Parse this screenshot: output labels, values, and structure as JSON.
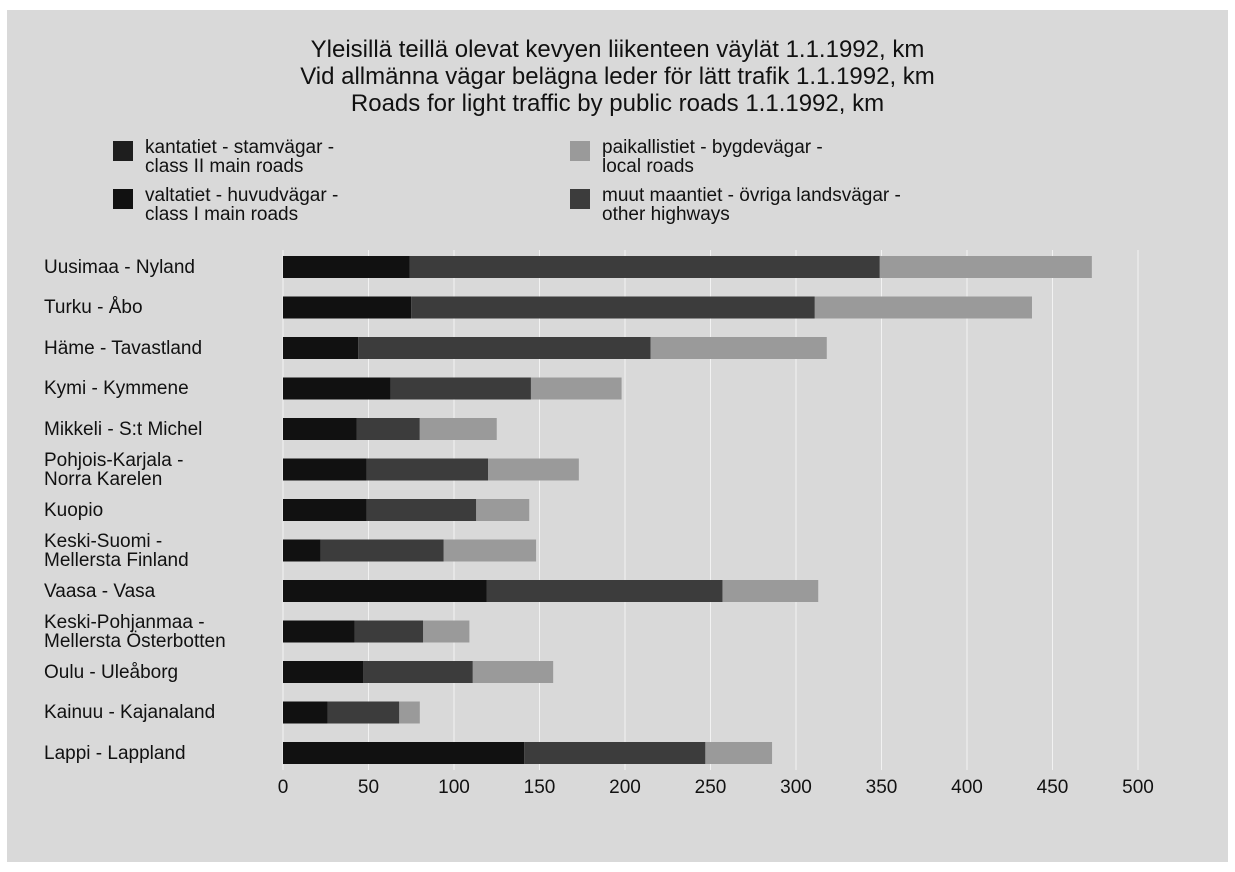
{
  "chart_data": {
    "type": "stacked-barh",
    "title": "Yleisillä teillä olevat kevyen liikenteen väylät 1.1.1992, km\nVid allmänna vägar belägna leder för lätt trafik 1.1.1992, km\nRoads for  light traffic by public roads 1.1.1992, km",
    "categories": [
      "Uusimaa - Nyland",
      "Turku - Åbo",
      "Häme - Tavastland",
      "Kymi - Kymmene",
      "Mikkeli - S:t Michel",
      "Pohjois-Karjala -\nNorra Karelen",
      "Kuopio",
      "Keski-Suomi -\nMellersta Finland",
      "Vaasa - Vasa",
      "Keski-Pohjanmaa -\nMellersta Österbotten",
      "Oulu - Uleåborg",
      "Kainuu - Kajanaland",
      "Lappi - Lappland"
    ],
    "series": [
      {
        "name": "kantatiet - stamvägar -\nclass II main roads",
        "color": "#1e1e1e",
        "values": [
          null,
          null,
          null,
          null,
          null,
          null,
          null,
          null,
          null,
          null,
          null,
          null,
          null
        ]
      },
      {
        "name": "paikallistiet - bygdevägar -\nlocal roads",
        "color": "#9a9a9a",
        "values": [
          124,
          127,
          103,
          53,
          45,
          53,
          31,
          54,
          56,
          27,
          47,
          12,
          39
        ]
      },
      {
        "name": "valtatiet - huvudvägar -\nclass I main roads",
        "color": "#111111",
        "values": [
          74,
          75,
          44,
          63,
          43,
          49,
          49,
          22,
          119,
          42,
          47,
          26,
          141
        ]
      },
      {
        "name": "muut maantiet - övriga landsvägar -\nother highways",
        "color": "#3c3c3c",
        "values": [
          275,
          236,
          171,
          82,
          37,
          71,
          64,
          72,
          138,
          40,
          64,
          42,
          106
        ]
      }
    ],
    "stack_order": [
      2,
      3,
      1,
      0
    ],
    "xlim": [
      0,
      500
    ],
    "xticks": [
      0,
      50,
      100,
      150,
      200,
      250,
      300,
      350,
      400,
      450,
      500
    ],
    "grid": true
  }
}
